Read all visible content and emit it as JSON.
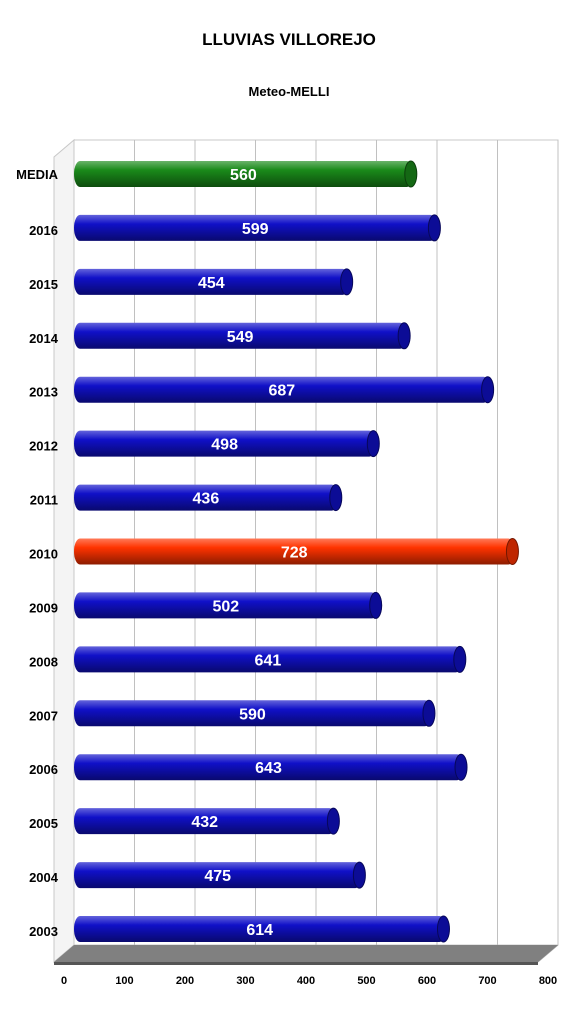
{
  "chart_data": {
    "type": "bar",
    "orientation": "horizontal",
    "title": "LLUVIAS VILLOREJO",
    "subtitle": "Meteo-MELLI",
    "xlabel": "",
    "ylabel": "",
    "xlim": [
      0,
      800
    ],
    "ticks": [
      "0",
      "100",
      "200",
      "300",
      "400",
      "500",
      "600",
      "700",
      "800"
    ],
    "grid": true,
    "categories": [
      "MEDIA",
      "2016",
      "2015",
      "2014",
      "2013",
      "2012",
      "2011",
      "2010",
      "2009",
      "2008",
      "2007",
      "2006",
      "2005",
      "2004",
      "2003"
    ],
    "values": [
      560,
      599,
      454,
      549,
      687,
      498,
      436,
      728,
      502,
      641,
      590,
      643,
      432,
      475,
      614
    ],
    "colors": [
      "#1a8a1a",
      "#1010c8",
      "#1010c8",
      "#1010c8",
      "#1010c8",
      "#1010c8",
      "#1010c8",
      "#ff3300",
      "#1010c8",
      "#1010c8",
      "#1010c8",
      "#1010c8",
      "#1010c8",
      "#1010c8",
      "#1010c8"
    ]
  }
}
